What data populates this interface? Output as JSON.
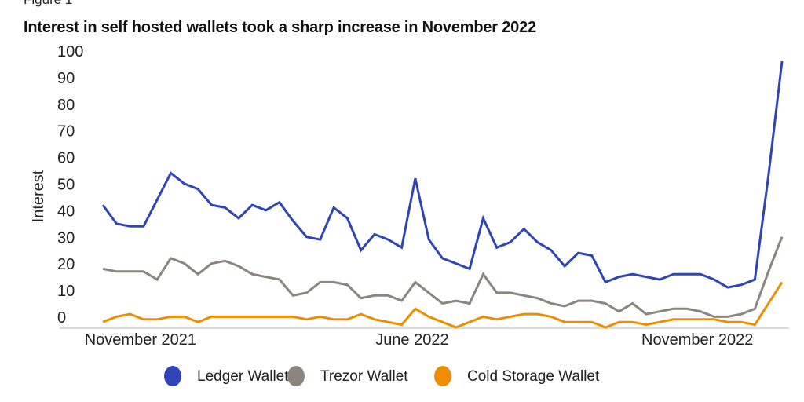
{
  "figure_label": "Figure 1",
  "chart_data": {
    "type": "line",
    "title": "Interest in self hosted wallets took a sharp increase in November 2022",
    "xlabel": "",
    "ylabel": "Interest",
    "ylim": [
      0,
      100
    ],
    "yticks": [
      "0",
      "10",
      "20",
      "30",
      "40",
      "50",
      "60",
      "70",
      "80",
      "90",
      "100"
    ],
    "xtick_labels": [
      {
        "label": "November 2021",
        "index": 3
      },
      {
        "label": "June 2022",
        "index": 23
      },
      {
        "label": "November 2022",
        "index": 44
      }
    ],
    "grid": false,
    "legend_position": "bottom",
    "series": [
      {
        "name": "Ledger Wallet",
        "color": "#2f44b7",
        "values": [
          46,
          39,
          38,
          38,
          48,
          58,
          54,
          52,
          46,
          45,
          41,
          46,
          44,
          47,
          40,
          34,
          33,
          45,
          41,
          29,
          35,
          33,
          30,
          56,
          33,
          26,
          24,
          22,
          41,
          30,
          32,
          37,
          32,
          29,
          23,
          28,
          27,
          17,
          19,
          20,
          19,
          18,
          20,
          20,
          20,
          18,
          15,
          16,
          18,
          57,
          100
        ]
      },
      {
        "name": "Trezor Wallet",
        "color": "#8b857d",
        "values": [
          22,
          21,
          21,
          21,
          18,
          26,
          24,
          20,
          24,
          25,
          23,
          20,
          19,
          18,
          12,
          13,
          17,
          17,
          16,
          11,
          12,
          12,
          10,
          17,
          13,
          9,
          10,
          9,
          20,
          13,
          13,
          12,
          11,
          9,
          8,
          10,
          10,
          9,
          6,
          9,
          5,
          6,
          7,
          7,
          6,
          4,
          4,
          5,
          7,
          21,
          34
        ]
      },
      {
        "name": "Cold Storage Wallet",
        "color": "#ef8c00",
        "values": [
          2,
          4,
          5,
          3,
          3,
          4,
          4,
          2,
          4,
          4,
          4,
          4,
          4,
          4,
          4,
          3,
          4,
          3,
          3,
          5,
          3,
          2,
          1,
          7,
          4,
          2,
          0,
          2,
          4,
          3,
          4,
          5,
          5,
          4,
          2,
          2,
          2,
          0,
          2,
          2,
          1,
          2,
          3,
          3,
          3,
          3,
          2,
          2,
          1,
          9,
          17
        ]
      }
    ]
  }
}
